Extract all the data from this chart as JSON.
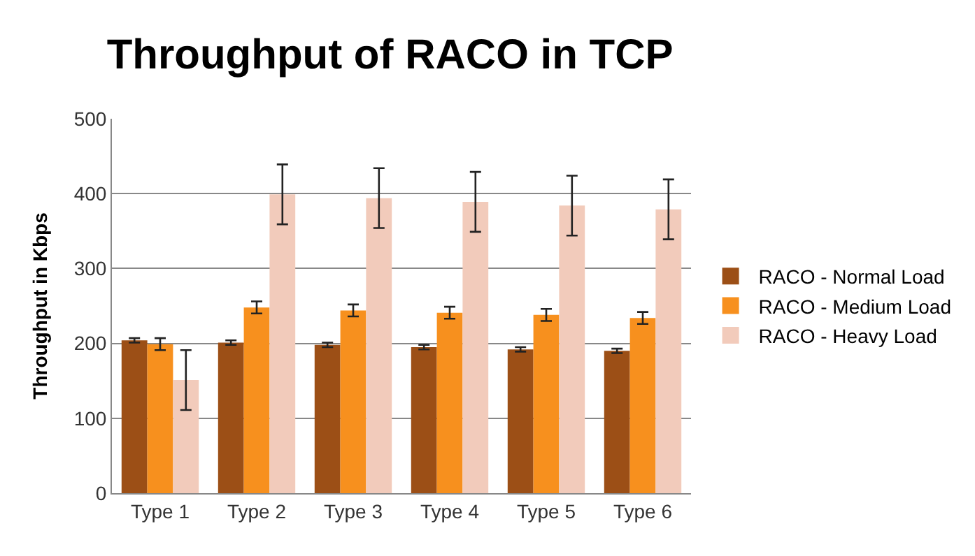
{
  "chart_data": {
    "type": "bar",
    "title": "Throughput of RACO in TCP",
    "ylabel": "Throughput in Kbps",
    "categories": [
      "Type 1",
      "Type 2",
      "Type 3",
      "Type 4",
      "Type 5",
      "Type 6"
    ],
    "series": [
      {
        "name": "RACO - Normal Load",
        "color": "#9c4f16",
        "values": [
          204,
          201,
          198,
          195,
          192,
          190
        ],
        "errors": [
          3,
          3,
          3,
          3,
          3,
          3
        ]
      },
      {
        "name": "RACO - Medium Load",
        "color": "#f7901e",
        "values": [
          199,
          248,
          244,
          241,
          238,
          234
        ],
        "errors": [
          8,
          8,
          8,
          8,
          8,
          8
        ]
      },
      {
        "name": "RACO - Heavy Load",
        "color": "#f2cbbb",
        "values": [
          151,
          399,
          394,
          389,
          384,
          379
        ],
        "errors": [
          40,
          40,
          40,
          40,
          40,
          40
        ]
      }
    ],
    "ylim": [
      0,
      500
    ],
    "yticks": [
      0,
      100,
      200,
      300,
      400,
      500
    ],
    "grid": "y",
    "legend": "right"
  }
}
